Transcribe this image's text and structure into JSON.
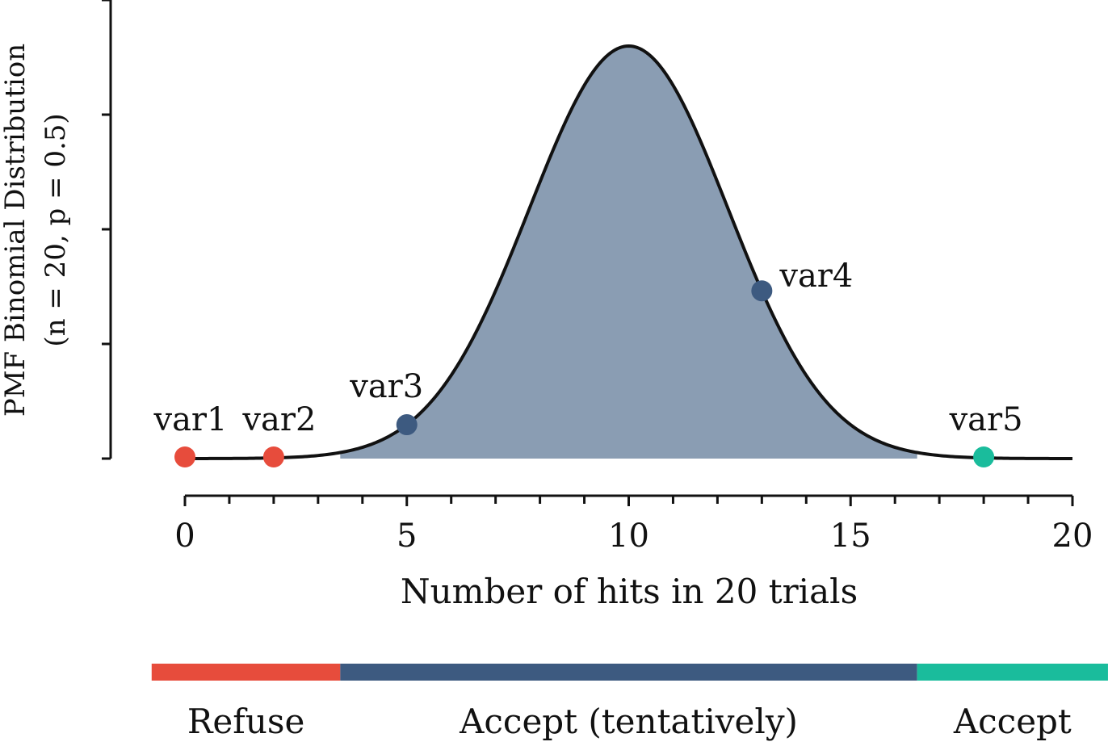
{
  "chart_data": {
    "type": "area",
    "ylabel_line1": "PMF Binomial Distribution",
    "ylabel_line2": "(n = 20, p = 0.5)",
    "xlabel": "Number of hits in 20 trials",
    "n": 20,
    "p": 0.5,
    "xlim": [
      0,
      20
    ],
    "x_ticks_major": [
      0,
      5,
      10,
      15,
      20
    ],
    "x_tick_labels": [
      "0",
      "5",
      "10",
      "15",
      "20"
    ],
    "x_ticks_minor_step": 1,
    "y_ticks_count": 5,
    "shaded_range": [
      3.5,
      16.5
    ],
    "fill_color": "#8a9db3",
    "line_color": "#111111",
    "points": [
      {
        "name": "var1",
        "x": 0,
        "color": "#e74c3c"
      },
      {
        "name": "var2",
        "x": 2,
        "color": "#e74c3c"
      },
      {
        "name": "var3",
        "x": 5,
        "color": "#3d5a80"
      },
      {
        "name": "var4",
        "x": 13,
        "color": "#3d5a80"
      },
      {
        "name": "var5",
        "x": 18,
        "color": "#1abc9c"
      }
    ],
    "regions": [
      {
        "label": "Refuse",
        "from": -0.75,
        "to": 3.5,
        "color": "#e74c3c"
      },
      {
        "label": "Accept (tentatively)",
        "from": 3.5,
        "to": 16.5,
        "color": "#3d5a80"
      },
      {
        "label": "Accept",
        "from": 16.5,
        "to": 20.8,
        "color": "#1abc9c"
      }
    ]
  }
}
